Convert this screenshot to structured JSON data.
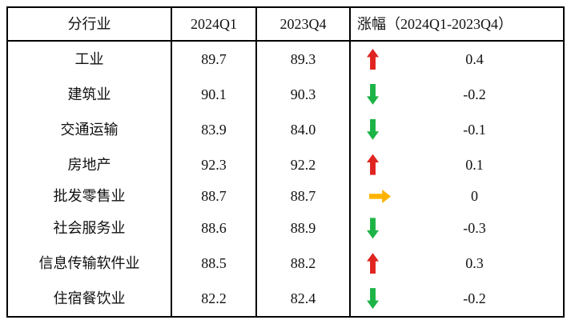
{
  "table": {
    "headers": {
      "industry": "分行业",
      "q1_2024": "2024Q1",
      "q4_2023": "2023Q4",
      "change": "涨幅（2024Q1-2023Q4）"
    },
    "rows": [
      {
        "industry": "工业",
        "q1_2024": "89.7",
        "q4_2023": "89.3",
        "trend": "up",
        "change": "0.4"
      },
      {
        "industry": "建筑业",
        "q1_2024": "90.1",
        "q4_2023": "90.3",
        "trend": "down",
        "change": "-0.2"
      },
      {
        "industry": "交通运输",
        "q1_2024": "83.9",
        "q4_2023": "84.0",
        "trend": "down",
        "change": "-0.1"
      },
      {
        "industry": "房地产",
        "q1_2024": "92.3",
        "q4_2023": "92.2",
        "trend": "up",
        "change": "0.1"
      },
      {
        "industry": "批发零售业",
        "q1_2024": "88.7",
        "q4_2023": "88.7",
        "trend": "flat",
        "change": "0"
      },
      {
        "industry": "社会服务业",
        "q1_2024": "88.6",
        "q4_2023": "88.9",
        "trend": "down",
        "change": "-0.3"
      },
      {
        "industry": "信息传输软件业",
        "q1_2024": "88.5",
        "q4_2023": "88.2",
        "trend": "up",
        "change": "0.3"
      },
      {
        "industry": "住宿餐饮业",
        "q1_2024": "82.2",
        "q4_2023": "82.4",
        "trend": "down",
        "change": "-0.2"
      }
    ]
  },
  "colors": {
    "up_arrow": "#e02420",
    "down_arrow": "#1db346",
    "flat_arrow": "#ffb300",
    "border": "#000000",
    "text": "#111111"
  },
  "chart_data": {
    "type": "table",
    "title": "",
    "columns": [
      "分行业",
      "2024Q1",
      "2023Q4",
      "涨幅（2024Q1-2023Q4）"
    ],
    "rows": [
      [
        "工业",
        89.7,
        89.3,
        0.4
      ],
      [
        "建筑业",
        90.1,
        90.3,
        -0.2
      ],
      [
        "交通运输",
        83.9,
        84.0,
        -0.1
      ],
      [
        "房地产",
        92.3,
        92.2,
        0.1
      ],
      [
        "批发零售业",
        88.7,
        88.7,
        0
      ],
      [
        "社会服务业",
        88.6,
        88.9,
        -0.3
      ],
      [
        "信息传输软件业",
        88.5,
        88.2,
        0.3
      ],
      [
        "住宿餐饮业",
        82.2,
        82.4,
        -0.2
      ]
    ],
    "trend_indicators": [
      "up",
      "down",
      "down",
      "up",
      "flat",
      "down",
      "up",
      "down"
    ],
    "legend_position": "none",
    "grid": "outer-border-header-separator-and-column-lines-only"
  }
}
